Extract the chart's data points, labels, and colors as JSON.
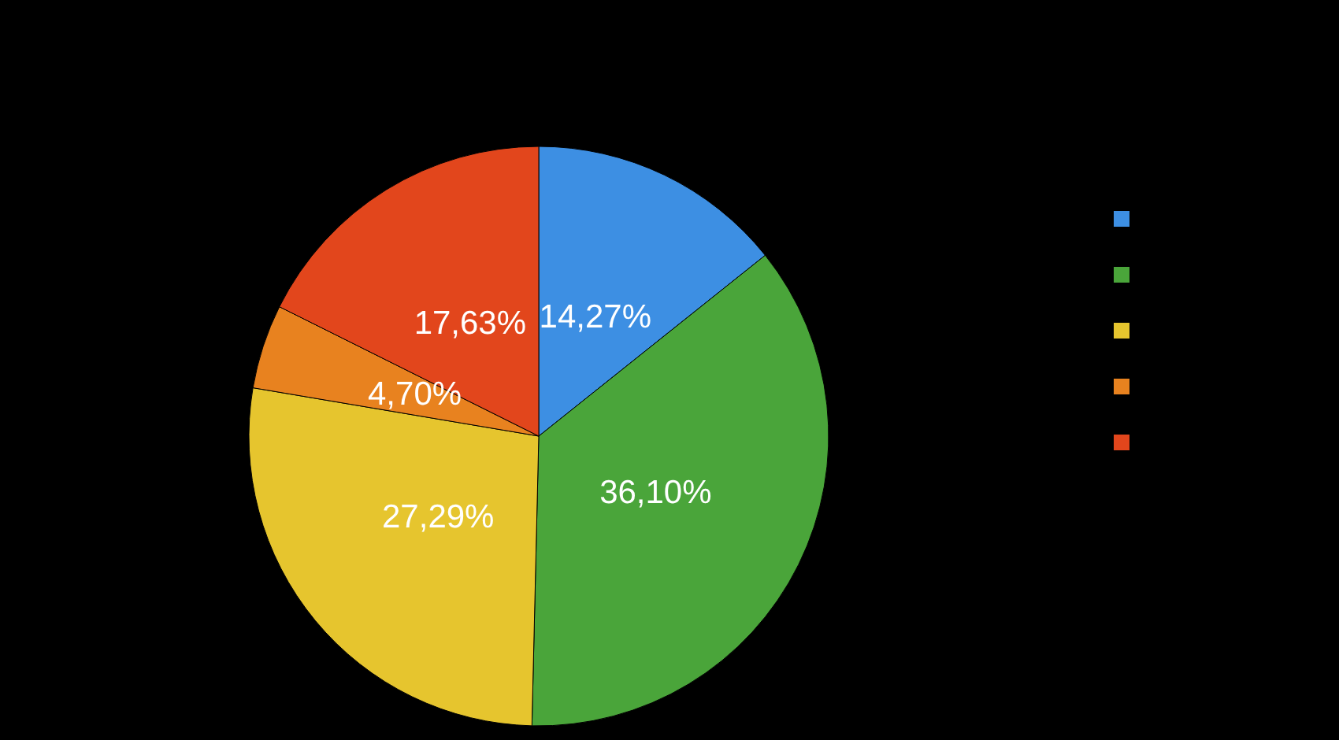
{
  "chart_data": {
    "type": "pie",
    "categories": [
      null,
      null,
      null,
      null,
      null
    ],
    "values": [
      14.27,
      36.1,
      27.29,
      4.7,
      17.63
    ],
    "colors": [
      "#3d8fe3",
      "#4aa53a",
      "#e6c52e",
      "#e8821f",
      "#e2461c"
    ],
    "value_labels": [
      "14,27%",
      "36,10%",
      "27,29%",
      "4,70%",
      "17,63%"
    ]
  }
}
